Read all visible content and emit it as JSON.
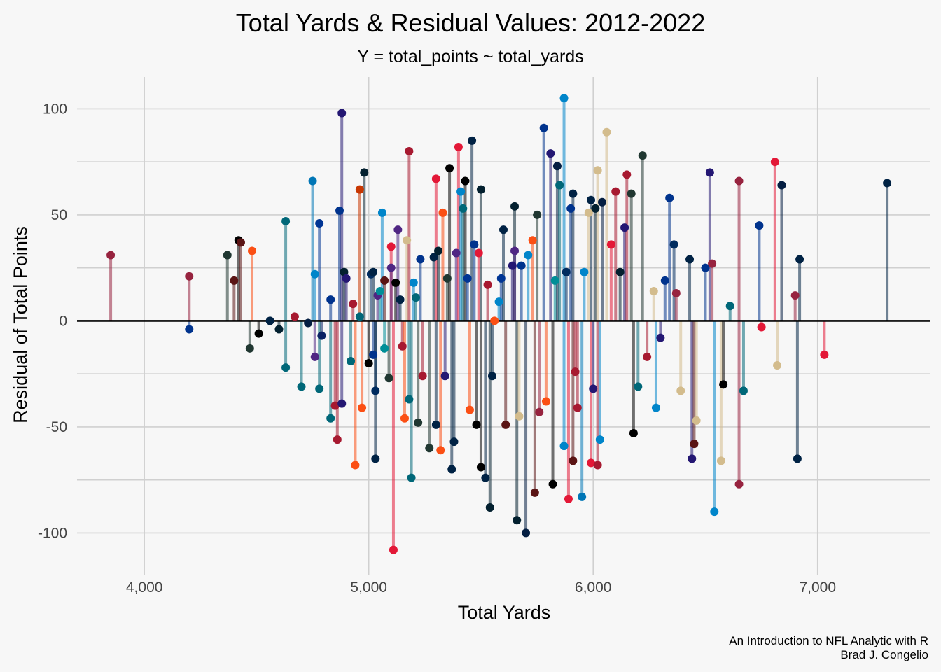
{
  "chart_data": {
    "type": "scatter",
    "style": "lollipop",
    "title": "Total Yards & Residual  Values: 2012-2022",
    "subtitle": "Y = total_points ~ total_yards",
    "xlabel": "Total Yards",
    "ylabel": "Residual of Total Points",
    "xlim": [
      3700,
      7500
    ],
    "ylim": [
      -120,
      115
    ],
    "x_ticks": [
      4000,
      5000,
      6000,
      7000
    ],
    "x_tick_labels": [
      "4,000",
      "5,000",
      "6,000",
      "7,000"
    ],
    "y_ticks": [
      100,
      50,
      0,
      -50,
      -100
    ],
    "y_tick_labels": [
      "100",
      "50",
      "0",
      "-50",
      "-100"
    ],
    "y_minor_ticks": [
      75,
      25,
      -25,
      -75
    ],
    "grid": true,
    "reference_line_y": 0,
    "caption_lines": [
      "An Introduction to NFL Analytic  with R",
      "Brad J. Congelio"
    ],
    "colors": {
      "background": "#f7f7f7",
      "grid": "#d0d0d0",
      "zero_line": "#000000",
      "teams": [
        "#97233F",
        "#A71930",
        "#241773",
        "#00338D",
        "#0085CA",
        "#C83803",
        "#FB4F14",
        "#311D00",
        "#041E42",
        "#002244",
        "#0076B6",
        "#203731",
        "#03202F",
        "#002C5F",
        "#006778",
        "#E31837",
        "#0080C6",
        "#003594",
        "#008E97",
        "#4F2683",
        "#002244",
        "#D3BC8D",
        "#0B2265",
        "#125740",
        "#000000",
        "#004C54",
        "#FFB612",
        "#AA0000",
        "#69BE28",
        "#D50A0A",
        "#4B92DB",
        "#5A1414"
      ]
    },
    "points": [
      {
        "x": 3850,
        "y": 31,
        "c": 0
      },
      {
        "x": 4200,
        "y": 21,
        "c": 0
      },
      {
        "x": 4200,
        "y": -4,
        "c": 3
      },
      {
        "x": 4370,
        "y": 31,
        "c": 11
      },
      {
        "x": 4400,
        "y": 19,
        "c": 31
      },
      {
        "x": 4420,
        "y": 38,
        "c": 24
      },
      {
        "x": 4430,
        "y": 37,
        "c": 31
      },
      {
        "x": 4480,
        "y": 33,
        "c": 6
      },
      {
        "x": 4470,
        "y": -13,
        "c": 11
      },
      {
        "x": 4510,
        "y": -6,
        "c": 24
      },
      {
        "x": 4560,
        "y": 0,
        "c": 9
      },
      {
        "x": 4600,
        "y": -4,
        "c": 12
      },
      {
        "x": 4630,
        "y": 47,
        "c": 14
      },
      {
        "x": 4630,
        "y": -22,
        "c": 14
      },
      {
        "x": 4670,
        "y": 2,
        "c": 1
      },
      {
        "x": 4700,
        "y": -31,
        "c": 14
      },
      {
        "x": 4730,
        "y": -1,
        "c": 8
      },
      {
        "x": 4750,
        "y": 66,
        "c": 10
      },
      {
        "x": 4760,
        "y": 22,
        "c": 4
      },
      {
        "x": 4760,
        "y": -17,
        "c": 19
      },
      {
        "x": 4780,
        "y": 46,
        "c": 17
      },
      {
        "x": 4780,
        "y": -32,
        "c": 14
      },
      {
        "x": 4790,
        "y": -7,
        "c": 22
      },
      {
        "x": 4830,
        "y": 10,
        "c": 3
      },
      {
        "x": 4830,
        "y": -46,
        "c": 14
      },
      {
        "x": 4850,
        "y": -40,
        "c": 1
      },
      {
        "x": 4860,
        "y": -56,
        "c": 1
      },
      {
        "x": 4870,
        "y": 52,
        "c": 3
      },
      {
        "x": 4880,
        "y": 98,
        "c": 2
      },
      {
        "x": 4880,
        "y": -39,
        "c": 2
      },
      {
        "x": 4890,
        "y": 23,
        "c": 12
      },
      {
        "x": 4900,
        "y": 20,
        "c": 2
      },
      {
        "x": 4920,
        "y": -19,
        "c": 14
      },
      {
        "x": 4930,
        "y": 8,
        "c": 1
      },
      {
        "x": 4940,
        "y": -68,
        "c": 6
      },
      {
        "x": 4960,
        "y": 62,
        "c": 5
      },
      {
        "x": 4960,
        "y": 2,
        "c": 14
      },
      {
        "x": 4970,
        "y": -41,
        "c": 6
      },
      {
        "x": 4980,
        "y": 70,
        "c": 12
      },
      {
        "x": 5000,
        "y": -20,
        "c": 24
      },
      {
        "x": 5010,
        "y": 22,
        "c": 13
      },
      {
        "x": 5020,
        "y": 23,
        "c": 9
      },
      {
        "x": 5020,
        "y": -16,
        "c": 3
      },
      {
        "x": 5030,
        "y": -33,
        "c": 13
      },
      {
        "x": 5030,
        "y": -65,
        "c": 9
      },
      {
        "x": 5040,
        "y": 12,
        "c": 19
      },
      {
        "x": 5050,
        "y": 14,
        "c": 18
      },
      {
        "x": 5060,
        "y": 51,
        "c": 4
      },
      {
        "x": 5070,
        "y": 19,
        "c": 31
      },
      {
        "x": 5070,
        "y": -13,
        "c": 18
      },
      {
        "x": 5090,
        "y": -27,
        "c": 11
      },
      {
        "x": 5100,
        "y": 35,
        "c": 15
      },
      {
        "x": 5100,
        "y": 25,
        "c": 19
      },
      {
        "x": 5110,
        "y": -108,
        "c": 15
      },
      {
        "x": 5120,
        "y": 18,
        "c": 24
      },
      {
        "x": 5130,
        "y": 43,
        "c": 19
      },
      {
        "x": 5140,
        "y": 10,
        "c": 9
      },
      {
        "x": 5150,
        "y": -12,
        "c": 1
      },
      {
        "x": 5160,
        "y": -46,
        "c": 6
      },
      {
        "x": 5170,
        "y": 38,
        "c": 21
      },
      {
        "x": 5180,
        "y": 80,
        "c": 1
      },
      {
        "x": 5180,
        "y": -37,
        "c": 14
      },
      {
        "x": 5190,
        "y": -74,
        "c": 14
      },
      {
        "x": 5200,
        "y": 18,
        "c": 4
      },
      {
        "x": 5210,
        "y": 11,
        "c": 14
      },
      {
        "x": 5220,
        "y": -48,
        "c": 11
      },
      {
        "x": 5230,
        "y": 29,
        "c": 3
      },
      {
        "x": 5240,
        "y": -26,
        "c": 1
      },
      {
        "x": 5270,
        "y": -60,
        "c": 11
      },
      {
        "x": 5290,
        "y": 30,
        "c": 9
      },
      {
        "x": 5300,
        "y": 67,
        "c": 15
      },
      {
        "x": 5300,
        "y": -49,
        "c": 9
      },
      {
        "x": 5310,
        "y": 33,
        "c": 12
      },
      {
        "x": 5320,
        "y": -61,
        "c": 6
      },
      {
        "x": 5330,
        "y": 51,
        "c": 6
      },
      {
        "x": 5340,
        "y": -26,
        "c": 2
      },
      {
        "x": 5350,
        "y": 20,
        "c": 11
      },
      {
        "x": 5360,
        "y": 72,
        "c": 24
      },
      {
        "x": 5370,
        "y": -70,
        "c": 9
      },
      {
        "x": 5380,
        "y": -57,
        "c": 9
      },
      {
        "x": 5390,
        "y": 32,
        "c": 19
      },
      {
        "x": 5400,
        "y": 82,
        "c": 15
      },
      {
        "x": 5410,
        "y": 61,
        "c": 4
      },
      {
        "x": 5420,
        "y": 53,
        "c": 14
      },
      {
        "x": 5430,
        "y": 66,
        "c": 24
      },
      {
        "x": 5440,
        "y": 20,
        "c": 17
      },
      {
        "x": 5450,
        "y": -42,
        "c": 6
      },
      {
        "x": 5460,
        "y": 85,
        "c": 9
      },
      {
        "x": 5470,
        "y": 36,
        "c": 3
      },
      {
        "x": 5480,
        "y": -49,
        "c": 24
      },
      {
        "x": 5490,
        "y": 32,
        "c": 15
      },
      {
        "x": 5500,
        "y": 62,
        "c": 12
      },
      {
        "x": 5500,
        "y": -69,
        "c": 24
      },
      {
        "x": 5520,
        "y": -74,
        "c": 9
      },
      {
        "x": 5530,
        "y": 17,
        "c": 1
      },
      {
        "x": 5540,
        "y": -88,
        "c": 12
      },
      {
        "x": 5550,
        "y": -26,
        "c": 9
      },
      {
        "x": 5560,
        "y": 0,
        "c": 6
      },
      {
        "x": 5580,
        "y": 9,
        "c": 4
      },
      {
        "x": 5590,
        "y": 20,
        "c": 17
      },
      {
        "x": 5600,
        "y": 43,
        "c": 9
      },
      {
        "x": 5610,
        "y": -49,
        "c": 31
      },
      {
        "x": 5640,
        "y": 26,
        "c": 2
      },
      {
        "x": 5650,
        "y": 54,
        "c": 12
      },
      {
        "x": 5650,
        "y": 33,
        "c": 19
      },
      {
        "x": 5660,
        "y": -94,
        "c": 12
      },
      {
        "x": 5670,
        "y": -45,
        "c": 21
      },
      {
        "x": 5680,
        "y": 26,
        "c": 3
      },
      {
        "x": 5700,
        "y": -100,
        "c": 8
      },
      {
        "x": 5710,
        "y": 31,
        "c": 4
      },
      {
        "x": 5730,
        "y": 38,
        "c": 6
      },
      {
        "x": 5740,
        "y": -81,
        "c": 31
      },
      {
        "x": 5750,
        "y": 50,
        "c": 11
      },
      {
        "x": 5760,
        "y": -43,
        "c": 0
      },
      {
        "x": 5780,
        "y": 91,
        "c": 3
      },
      {
        "x": 5790,
        "y": -38,
        "c": 6
      },
      {
        "x": 5810,
        "y": 79,
        "c": 2
      },
      {
        "x": 5820,
        "y": -77,
        "c": 24
      },
      {
        "x": 5830,
        "y": 19,
        "c": 18
      },
      {
        "x": 5840,
        "y": 73,
        "c": 8
      },
      {
        "x": 5850,
        "y": 64,
        "c": 14
      },
      {
        "x": 5870,
        "y": 105,
        "c": 4
      },
      {
        "x": 5870,
        "y": -59,
        "c": 4
      },
      {
        "x": 5880,
        "y": 23,
        "c": 13
      },
      {
        "x": 5890,
        "y": -84,
        "c": 15
      },
      {
        "x": 5900,
        "y": 53,
        "c": 3
      },
      {
        "x": 5910,
        "y": 60,
        "c": 9
      },
      {
        "x": 5910,
        "y": -66,
        "c": 31
      },
      {
        "x": 5920,
        "y": -24,
        "c": 1
      },
      {
        "x": 5930,
        "y": -41,
        "c": 1
      },
      {
        "x": 5950,
        "y": -83,
        "c": 10
      },
      {
        "x": 5960,
        "y": 23,
        "c": 4
      },
      {
        "x": 5980,
        "y": 51,
        "c": 21
      },
      {
        "x": 5990,
        "y": 57,
        "c": 9
      },
      {
        "x": 5990,
        "y": -67,
        "c": 15
      },
      {
        "x": 6000,
        "y": -32,
        "c": 2
      },
      {
        "x": 6010,
        "y": 53,
        "c": 12
      },
      {
        "x": 6020,
        "y": 71,
        "c": 21
      },
      {
        "x": 6020,
        "y": -68,
        "c": 1
      },
      {
        "x": 6030,
        "y": -56,
        "c": 4
      },
      {
        "x": 6040,
        "y": 56,
        "c": 8
      },
      {
        "x": 6060,
        "y": 89,
        "c": 21
      },
      {
        "x": 6080,
        "y": 36,
        "c": 15
      },
      {
        "x": 6100,
        "y": 61,
        "c": 1
      },
      {
        "x": 6120,
        "y": 23,
        "c": 12
      },
      {
        "x": 6140,
        "y": 44,
        "c": 2
      },
      {
        "x": 6150,
        "y": 69,
        "c": 1
      },
      {
        "x": 6170,
        "y": 60,
        "c": 11
      },
      {
        "x": 6180,
        "y": -53,
        "c": 24
      },
      {
        "x": 6200,
        "y": -31,
        "c": 14
      },
      {
        "x": 6220,
        "y": 78,
        "c": 11
      },
      {
        "x": 6240,
        "y": -17,
        "c": 1
      },
      {
        "x": 6270,
        "y": 14,
        "c": 21
      },
      {
        "x": 6280,
        "y": -41,
        "c": 4
      },
      {
        "x": 6300,
        "y": -8,
        "c": 2
      },
      {
        "x": 6320,
        "y": 19,
        "c": 3
      },
      {
        "x": 6340,
        "y": 58,
        "c": 3
      },
      {
        "x": 6360,
        "y": 36,
        "c": 13
      },
      {
        "x": 6370,
        "y": 13,
        "c": 0
      },
      {
        "x": 6390,
        "y": -33,
        "c": 21
      },
      {
        "x": 6430,
        "y": 29,
        "c": 9
      },
      {
        "x": 6440,
        "y": -65,
        "c": 2
      },
      {
        "x": 6450,
        "y": -58,
        "c": 31
      },
      {
        "x": 6460,
        "y": -47,
        "c": 21
      },
      {
        "x": 6500,
        "y": 25,
        "c": 3
      },
      {
        "x": 6520,
        "y": 70,
        "c": 2
      },
      {
        "x": 6530,
        "y": 27,
        "c": 0
      },
      {
        "x": 6540,
        "y": -90,
        "c": 4
      },
      {
        "x": 6570,
        "y": -66,
        "c": 21
      },
      {
        "x": 6580,
        "y": -30,
        "c": 24
      },
      {
        "x": 6610,
        "y": 7,
        "c": 14
      },
      {
        "x": 6650,
        "y": 66,
        "c": 0
      },
      {
        "x": 6650,
        "y": -77,
        "c": 0
      },
      {
        "x": 6670,
        "y": -33,
        "c": 14
      },
      {
        "x": 6740,
        "y": 45,
        "c": 3
      },
      {
        "x": 6750,
        "y": -3,
        "c": 15
      },
      {
        "x": 6810,
        "y": 75,
        "c": 15
      },
      {
        "x": 6820,
        "y": -21,
        "c": 21
      },
      {
        "x": 6840,
        "y": 64,
        "c": 8
      },
      {
        "x": 6900,
        "y": 12,
        "c": 0
      },
      {
        "x": 6910,
        "y": -65,
        "c": 9
      },
      {
        "x": 6920,
        "y": 29,
        "c": 9
      },
      {
        "x": 7030,
        "y": -16,
        "c": 15
      },
      {
        "x": 7310,
        "y": 65,
        "c": 9
      }
    ]
  }
}
